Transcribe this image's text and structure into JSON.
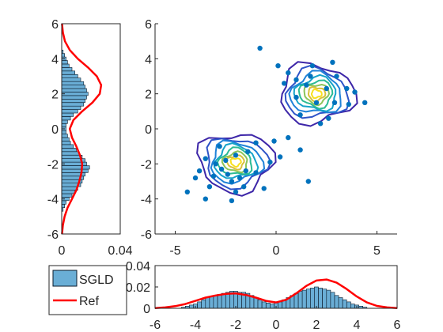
{
  "chart_data": [
    {
      "panel": "left-marginal",
      "type": "bar",
      "orientation": "horizontal",
      "xlim": [
        0,
        0.04
      ],
      "ylim": [
        -6,
        6
      ],
      "x_ticks": [
        "0",
        "0.04"
      ],
      "y_ticks": [
        "6",
        "4",
        "2",
        "0",
        "-2",
        "-4",
        "-6"
      ],
      "bins": [
        -4.6,
        -4.4,
        -4.2,
        -4.0,
        -3.8,
        -3.6,
        -3.4,
        -3.2,
        -3.0,
        -2.8,
        -2.6,
        -2.4,
        -2.2,
        -2.0,
        -1.8,
        -1.6,
        -1.4,
        -1.2,
        -1.0,
        -0.8,
        -0.6,
        -0.4,
        -0.2,
        0.0,
        0.2,
        0.4,
        0.6,
        0.8,
        1.0,
        1.2,
        1.4,
        1.6,
        1.8,
        2.0,
        2.2,
        2.4,
        2.6,
        2.8,
        3.0,
        3.2,
        3.4,
        3.6,
        3.8,
        4.0,
        4.2,
        4.4
      ],
      "values": [
        0.001,
        0.002,
        0.003,
        0.005,
        0.007,
        0.009,
        0.011,
        0.013,
        0.014,
        0.015,
        0.016,
        0.018,
        0.019,
        0.017,
        0.016,
        0.014,
        0.012,
        0.01,
        0.008,
        0.006,
        0.005,
        0.004,
        0.003,
        0.003,
        0.003,
        0.004,
        0.006,
        0.008,
        0.011,
        0.013,
        0.015,
        0.016,
        0.017,
        0.018,
        0.017,
        0.016,
        0.015,
        0.013,
        0.011,
        0.009,
        0.007,
        0.005,
        0.004,
        0.003,
        0.002,
        0.001
      ],
      "ref_curve": {
        "y": [
          -6,
          -5.5,
          -5,
          -4.5,
          -4,
          -3.5,
          -3,
          -2.5,
          -2,
          -1.5,
          -1,
          -0.5,
          0,
          0.5,
          1,
          1.5,
          2,
          2.5,
          3,
          3.5,
          4,
          4.5,
          5,
          5.5,
          6
        ],
        "x": [
          0.0002,
          0.0008,
          0.002,
          0.004,
          0.007,
          0.01,
          0.012,
          0.0135,
          0.014,
          0.0125,
          0.01,
          0.007,
          0.0055,
          0.008,
          0.014,
          0.021,
          0.026,
          0.027,
          0.024,
          0.018,
          0.011,
          0.0055,
          0.0022,
          0.0008,
          0.0002
        ]
      }
    },
    {
      "panel": "joint-scatter-contour",
      "type": "scatter",
      "xlim": [
        -6,
        6
      ],
      "ylim": [
        -6,
        6
      ],
      "x_ticks": [
        "-5",
        "0",
        "5"
      ],
      "y_ticks": [
        "6",
        "4",
        "2",
        "0",
        "-2",
        "-4",
        "-6"
      ],
      "colors": {
        "points": "#0072bd",
        "contour_levels": [
          "#3d26a8",
          "#2e54c8",
          "#1f82d8",
          "#16a3c9",
          "#2cbb95",
          "#8cc45a",
          "#d8c03a",
          "#f8e01f"
        ]
      },
      "clusters": [
        {
          "center": [
            -2,
            -1.9
          ],
          "ring_radii": [
            1.75,
            1.45,
            1.2,
            0.98,
            0.78,
            0.58,
            0.4,
            0.24
          ]
        },
        {
          "center": [
            2,
            2
          ],
          "ring_radii": [
            1.75,
            1.45,
            1.2,
            0.98,
            0.78,
            0.58,
            0.4,
            0.24
          ]
        }
      ],
      "points": [
        [
          -2.5,
          -1.8
        ],
        [
          -2.0,
          -1.5
        ],
        [
          -2.4,
          -2.6
        ],
        [
          -3.0,
          -2.0
        ],
        [
          -1.5,
          -2.4
        ],
        [
          -2.2,
          -3.0
        ],
        [
          -3.1,
          -2.7
        ],
        [
          -3.5,
          -1.7
        ],
        [
          -2.0,
          -3.6
        ],
        [
          -1.0,
          -2.5
        ],
        [
          -2.8,
          -1.0
        ],
        [
          -1.4,
          -1.3
        ],
        [
          -3.3,
          -3.3
        ],
        [
          -4.0,
          -2.8
        ],
        [
          -1.6,
          -3.3
        ],
        [
          -0.3,
          -1.9
        ],
        [
          0.2,
          -1.6
        ],
        [
          -1.0,
          -0.8
        ],
        [
          -0.6,
          -3.4
        ],
        [
          -2.2,
          -4.1
        ],
        [
          -3.5,
          -4.0
        ],
        [
          -4.4,
          -3.6
        ],
        [
          -2.7,
          -2.3
        ],
        [
          -3.8,
          -2.4
        ],
        [
          -1.8,
          -2.8
        ],
        [
          2.0,
          1.5
        ],
        [
          1.5,
          2.5
        ],
        [
          2.5,
          2.3
        ],
        [
          1.0,
          1.8
        ],
        [
          2.9,
          1.5
        ],
        [
          1.7,
          3.0
        ],
        [
          3.0,
          3.0
        ],
        [
          0.4,
          2.6
        ],
        [
          2.6,
          0.6
        ],
        [
          3.6,
          1.4
        ],
        [
          1.2,
          0.8
        ],
        [
          0.6,
          3.2
        ],
        [
          3.5,
          2.3
        ],
        [
          1.8,
          3.6
        ],
        [
          2.2,
          0.3
        ],
        [
          3.9,
          2.1
        ],
        [
          0.1,
          3.6
        ],
        [
          4.4,
          1.5
        ],
        [
          1.0,
          2.8
        ],
        [
          2.8,
          3.8
        ],
        [
          -0.8,
          4.6
        ],
        [
          1.2,
          -1.2
        ],
        [
          0.6,
          -0.5
        ],
        [
          1.6,
          -3.0
        ],
        [
          -0.1,
          -0.7
        ]
      ]
    },
    {
      "panel": "bottom-marginal",
      "type": "bar",
      "xlim": [
        -6,
        6
      ],
      "ylim": [
        0,
        0.04
      ],
      "x_ticks": [
        "-6",
        "-4",
        "-2",
        "0",
        "2",
        "4",
        "6"
      ],
      "y_ticks": [
        "0.04",
        "0.02",
        "0"
      ],
      "bins": [
        -4.6,
        -4.4,
        -4.2,
        -4.0,
        -3.8,
        -3.6,
        -3.4,
        -3.2,
        -3.0,
        -2.8,
        -2.6,
        -2.4,
        -2.2,
        -2.0,
        -1.8,
        -1.6,
        -1.4,
        -1.2,
        -1.0,
        -0.8,
        -0.6,
        -0.4,
        -0.2,
        0.0,
        0.2,
        0.4,
        0.6,
        0.8,
        1.0,
        1.2,
        1.4,
        1.6,
        1.8,
        2.0,
        2.2,
        2.4,
        2.6,
        2.8,
        3.0,
        3.2,
        3.4,
        3.6,
        3.8,
        4.0,
        4.2,
        4.4
      ],
      "values": [
        0.001,
        0.002,
        0.003,
        0.004,
        0.006,
        0.008,
        0.01,
        0.011,
        0.012,
        0.013,
        0.014,
        0.015,
        0.016,
        0.016,
        0.015,
        0.015,
        0.014,
        0.012,
        0.01,
        0.008,
        0.006,
        0.005,
        0.004,
        0.005,
        0.006,
        0.008,
        0.01,
        0.012,
        0.014,
        0.016,
        0.017,
        0.018,
        0.019,
        0.02,
        0.019,
        0.018,
        0.017,
        0.015,
        0.012,
        0.01,
        0.008,
        0.006,
        0.004,
        0.003,
        0.002,
        0.001
      ],
      "ref_curve": {
        "x": [
          -6,
          -5.5,
          -5,
          -4.5,
          -4,
          -3.5,
          -3,
          -2.5,
          -2,
          -1.5,
          -1,
          -0.5,
          0,
          0.5,
          1,
          1.5,
          2,
          2.5,
          3,
          3.5,
          4,
          4.5,
          5,
          5.5,
          6
        ],
        "y": [
          0.0002,
          0.0008,
          0.002,
          0.004,
          0.007,
          0.01,
          0.012,
          0.0135,
          0.014,
          0.0125,
          0.01,
          0.007,
          0.0055,
          0.008,
          0.014,
          0.021,
          0.026,
          0.027,
          0.024,
          0.018,
          0.011,
          0.0055,
          0.0022,
          0.0008,
          0.0002
        ]
      }
    }
  ],
  "legend": {
    "placement": "lower-left",
    "items": [
      {
        "label": "SGLD",
        "color": "#6aaed6"
      },
      {
        "label": "Ref",
        "color": "#ff0000"
      }
    ]
  },
  "colors": {
    "hist_fill": "#6aaed6",
    "hist_edge": "#0b1a2a",
    "ref_line": "#ff0000",
    "axes": "#262626"
  }
}
